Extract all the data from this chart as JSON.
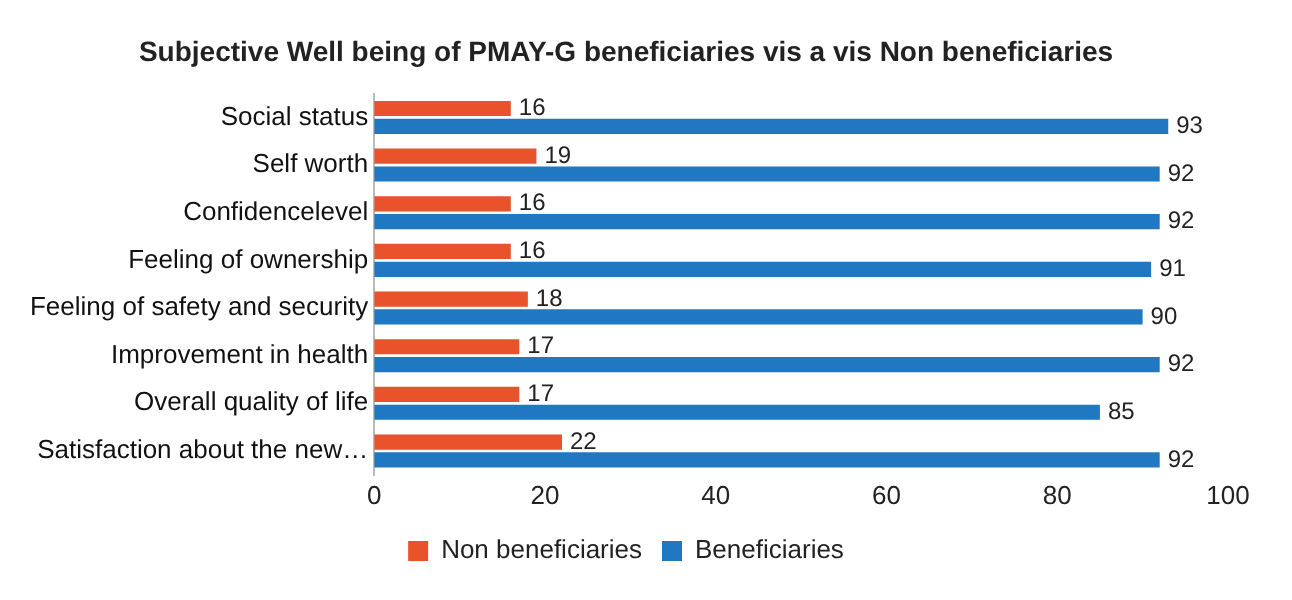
{
  "chart_data": {
    "type": "bar",
    "orientation": "horizontal",
    "title": "Subjective Well being of PMAY-G beneficiaries vis a vis Non beneficiaries",
    "categories": [
      "Social status",
      "Self worth",
      "Confidencelevel",
      "Feeling of ownership",
      "Feeling of safety and security",
      "Improvement in health",
      "Overall quality of life",
      "Satisfaction about the new…"
    ],
    "series": [
      {
        "name": "Non beneficiaries",
        "color": "#e8532b",
        "values": [
          16,
          19,
          16,
          16,
          18,
          17,
          17,
          22
        ]
      },
      {
        "name": "Beneficiaries",
        "color": "#1f78c1",
        "values": [
          93,
          92,
          92,
          91,
          90,
          92,
          85,
          92
        ]
      }
    ],
    "xlim": [
      0,
      100
    ],
    "xticks": [
      0,
      20,
      40,
      60,
      80,
      100
    ],
    "grid": false,
    "legend": "bottom",
    "data_labels": true
  }
}
